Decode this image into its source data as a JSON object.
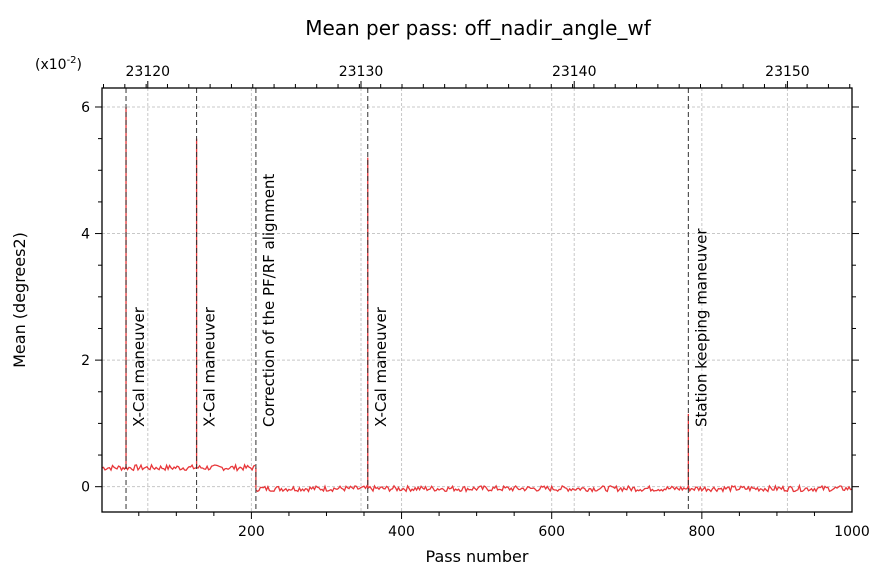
{
  "chart_data": {
    "type": "line",
    "title": "Mean per pass: off_nadir_angle_wf",
    "xlabel": "Pass number",
    "ylabel": "Mean (degrees2)",
    "y_scale_label": "(x10",
    "y_scale_exp": "-2",
    "y_scale_close": ")",
    "xlim": [
      1,
      1000
    ],
    "ylim": [
      -0.4,
      6.3
    ],
    "x_ticks": [
      200,
      400,
      600,
      800,
      1000
    ],
    "y_ticks": [
      0,
      2,
      4,
      6
    ],
    "top_axis": {
      "ticks": [
        23120,
        23130,
        23140,
        23150
      ],
      "tick_positions_pass": [
        62,
        346,
        630,
        914
      ]
    },
    "grid": true,
    "series": [
      {
        "color": "#e8373a",
        "segments": [
          {
            "x_start": 1,
            "x_end": 206,
            "baseline": 0.3
          },
          {
            "x_start": 206,
            "x_end": 1000,
            "baseline": -0.03
          }
        ],
        "spikes": [
          {
            "x": 33,
            "y": 6.0
          },
          {
            "x": 127,
            "y": 5.5
          },
          {
            "x": 355,
            "y": 5.2
          },
          {
            "x": 782,
            "y": 1.15
          }
        ]
      }
    ],
    "annotations": [
      {
        "x": 33,
        "text": "X-Cal maneuver"
      },
      {
        "x": 127,
        "text": "X-Cal maneuver"
      },
      {
        "x": 206,
        "text": "Correction of the PF/RF alignment"
      },
      {
        "x": 355,
        "text": "X-Cal maneuver"
      },
      {
        "x": 782,
        "text": "Station keeping maneuver"
      }
    ]
  }
}
